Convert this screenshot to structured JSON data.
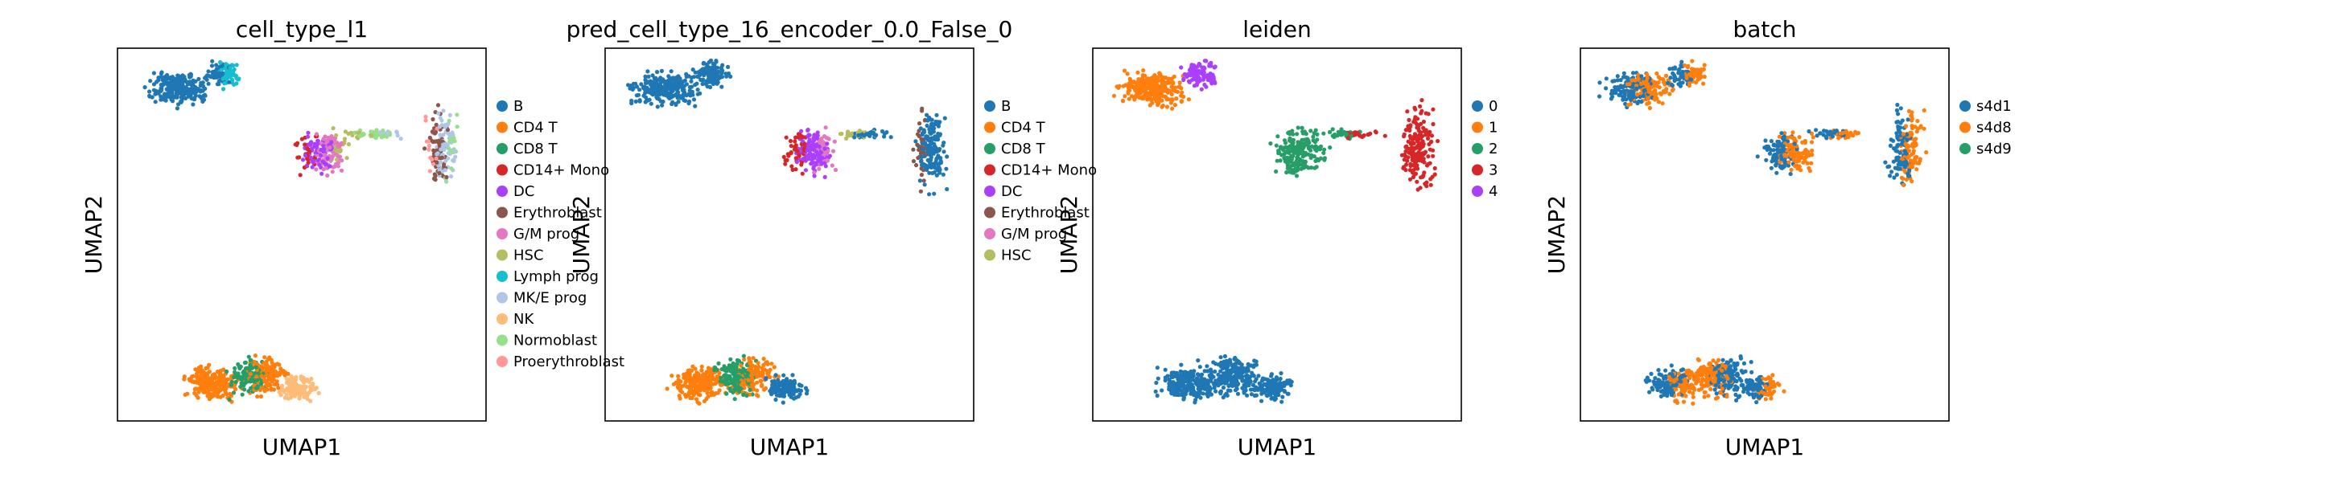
{
  "chart_data": [
    {
      "type": "scatter",
      "title": "cell_type_l1",
      "xlabel": "UMAP1",
      "ylabel": "UMAP2",
      "grid": false,
      "legend_placement": "right",
      "color_by": "category",
      "legend": [
        {
          "label": "B",
          "color": "#1f77b4"
        },
        {
          "label": "CD4 T",
          "color": "#ff7f0e"
        },
        {
          "label": "CD8 T",
          "color": "#279e68"
        },
        {
          "label": "CD14+ Mono",
          "color": "#d62728"
        },
        {
          "label": "DC",
          "color": "#aa40fc"
        },
        {
          "label": "Erythroblast",
          "color": "#8c564b"
        },
        {
          "label": "G/M prog",
          "color": "#e377c2"
        },
        {
          "label": "HSC",
          "color": "#b5bd61"
        },
        {
          "label": "Lymph prog",
          "color": "#17becf"
        },
        {
          "label": "MK/E prog",
          "color": "#aec7e8"
        },
        {
          "label": "NK",
          "color": "#ffbb78"
        },
        {
          "label": "Normoblast",
          "color": "#98df8a"
        },
        {
          "label": "Proerythroblast",
          "color": "#ff9896"
        }
      ]
    },
    {
      "type": "scatter",
      "title": "pred_cell_type_16_encoder_0.0_False_0",
      "xlabel": "UMAP1",
      "ylabel": "UMAP2",
      "grid": false,
      "legend_placement": "right",
      "color_by": "category",
      "legend": [
        {
          "label": "B",
          "color": "#1f77b4"
        },
        {
          "label": "CD4 T",
          "color": "#ff7f0e"
        },
        {
          "label": "CD8 T",
          "color": "#279e68"
        },
        {
          "label": "CD14+ Mono",
          "color": "#d62728"
        },
        {
          "label": "DC",
          "color": "#aa40fc"
        },
        {
          "label": "Erythroblast",
          "color": "#8c564b"
        },
        {
          "label": "G/M prog",
          "color": "#e377c2"
        },
        {
          "label": "HSC",
          "color": "#b5bd61"
        }
      ]
    },
    {
      "type": "scatter",
      "title": "leiden",
      "xlabel": "UMAP1",
      "ylabel": "UMAP2",
      "grid": false,
      "legend_placement": "right",
      "color_by": "cluster",
      "legend": [
        {
          "label": "0",
          "color": "#1f77b4"
        },
        {
          "label": "1",
          "color": "#ff7f0e"
        },
        {
          "label": "2",
          "color": "#279e68"
        },
        {
          "label": "3",
          "color": "#d62728"
        },
        {
          "label": "4",
          "color": "#aa40fc"
        }
      ]
    },
    {
      "type": "scatter",
      "title": "batch",
      "xlabel": "UMAP1",
      "ylabel": "UMAP2",
      "grid": false,
      "legend_placement": "right",
      "color_by": "batch",
      "legend": [
        {
          "label": "s4d1",
          "color": "#1f77b4"
        },
        {
          "label": "s4d8",
          "color": "#ff7f0e"
        },
        {
          "label": "s4d9",
          "color": "#279e68"
        }
      ]
    }
  ]
}
